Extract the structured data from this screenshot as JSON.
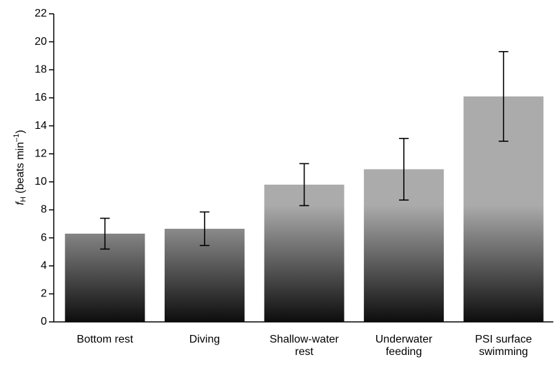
{
  "chart_data": {
    "type": "bar",
    "categories": [
      [
        "Bottom rest"
      ],
      [
        "Diving"
      ],
      [
        "Shallow-water",
        "rest"
      ],
      [
        "Underwater",
        "feeding"
      ],
      [
        "PSI surface",
        "swimming"
      ]
    ],
    "values": [
      6.3,
      6.65,
      9.8,
      10.9,
      16.1
    ],
    "errors": [
      1.1,
      1.2,
      1.5,
      2.2,
      3.2
    ],
    "y_label": {
      "symbol": "f",
      "subscript": "H",
      "text": " (beats min",
      "superscript": "–1",
      "close": ")"
    },
    "ylim": [
      0,
      22
    ],
    "yticks": [
      0,
      2,
      4,
      6,
      8,
      10,
      12,
      14,
      16,
      18,
      20,
      22
    ],
    "color": "#ababab",
    "color_bottom": "#0d0d0d",
    "grid": false
  }
}
